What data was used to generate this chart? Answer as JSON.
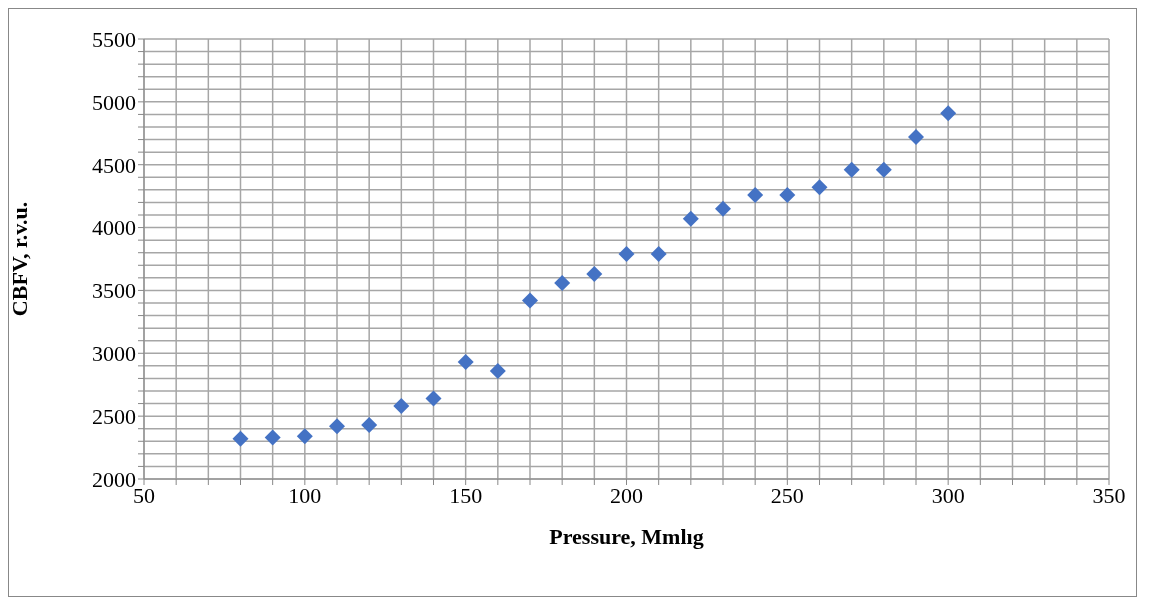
{
  "chart_data": {
    "type": "scatter",
    "xlabel": "Pressure, Mmlıg",
    "ylabel": "CBFV, r.v.u.",
    "x": [
      80,
      90,
      100,
      110,
      120,
      130,
      140,
      150,
      160,
      170,
      180,
      190,
      200,
      210,
      220,
      230,
      240,
      250,
      260,
      270,
      280,
      290,
      300
    ],
    "series": [
      {
        "color": "#4472c4",
        "values": [
          2320,
          2330,
          2340,
          2420,
          2430,
          2580,
          2640,
          2930,
          2860,
          3420,
          3560,
          3630,
          3790,
          3790,
          4070,
          4150,
          4260,
          4260,
          4320,
          4460,
          4460,
          4720,
          4910
        ]
      }
    ],
    "marker": "diamond",
    "grid": true,
    "legend": false,
    "xlim": [
      50,
      350
    ],
    "xticks": [
      50,
      {
        "value": 60,
        "label": null
      },
      {
        "value": 70,
        "label": null
      },
      {
        "value": 80,
        "label": null
      },
      {
        "value": 90,
        "label": null
      },
      100,
      {
        "value": 110,
        "label": null
      },
      {
        "value": 120,
        "label": null
      },
      {
        "value": 130,
        "label": null
      },
      {
        "value": 140,
        "label": null
      },
      150,
      {
        "value": 160,
        "label": null
      },
      {
        "value": 170,
        "label": null
      },
      {
        "value": 180,
        "label": null
      },
      {
        "value": 190,
        "label": null
      },
      200,
      {
        "value": 210,
        "label": null
      },
      {
        "value": 220,
        "label": null
      },
      {
        "value": 230,
        "label": null
      },
      {
        "value": 240,
        "label": null
      },
      250,
      {
        "value": 260,
        "label": null
      },
      {
        "value": 270,
        "label": null
      },
      {
        "value": 280,
        "label": null
      },
      {
        "value": 290,
        "label": null
      },
      300,
      {
        "value": 310,
        "label": null
      },
      {
        "value": 320,
        "label": null
      },
      {
        "value": 330,
        "label": null
      },
      {
        "value": 340,
        "label": null
      },
      350
    ],
    "ylim": [
      2000,
      5500
    ],
    "yticks": [
      2000,
      {
        "value": 2100,
        "label": null
      },
      {
        "value": 2200,
        "label": null
      },
      {
        "value": 2300,
        "label": null
      },
      {
        "value": 2400,
        "label": null
      },
      2500,
      {
        "value": 2600,
        "label": null
      },
      {
        "value": 2700,
        "label": null
      },
      {
        "value": 2800,
        "label": null
      },
      {
        "value": 2900,
        "label": null
      },
      3000,
      {
        "value": 3100,
        "label": null
      },
      {
        "value": 3200,
        "label": null
      },
      {
        "value": 3300,
        "label": null
      },
      {
        "value": 3400,
        "label": null
      },
      3500,
      {
        "value": 3600,
        "label": null
      },
      {
        "value": 3700,
        "label": null
      },
      {
        "value": 3800,
        "label": null
      },
      {
        "value": 3900,
        "label": null
      },
      4000,
      {
        "value": 4100,
        "label": null
      },
      {
        "value": 4200,
        "label": null
      },
      {
        "value": 4300,
        "label": null
      },
      {
        "value": 4400,
        "label": null
      },
      4500,
      {
        "value": 4600,
        "label": null
      },
      {
        "value": 4700,
        "label": null
      },
      {
        "value": 4800,
        "label": null
      },
      {
        "value": 4900,
        "label": null
      },
      5000,
      {
        "value": 5100,
        "label": null
      },
      {
        "value": 5200,
        "label": null
      },
      {
        "value": 5300,
        "label": null
      },
      {
        "value": 5400,
        "label": null
      },
      5500
    ]
  }
}
